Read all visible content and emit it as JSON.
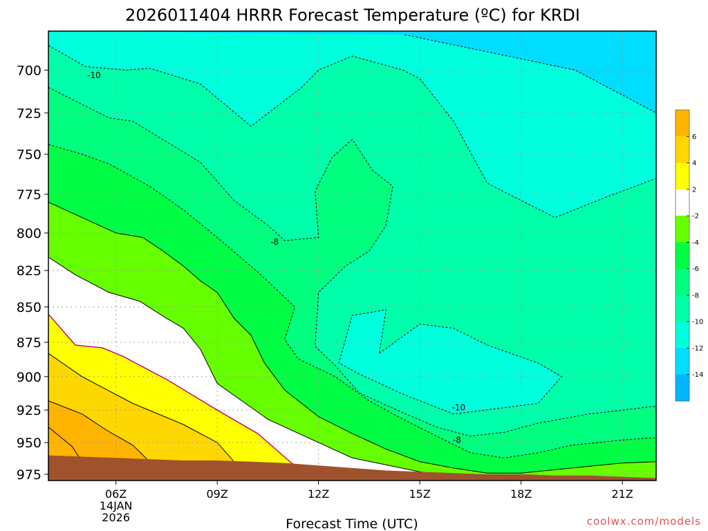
{
  "chart_data": {
    "type": "contour",
    "title": "2026011404 HRRR Forecast Temperature (ºC) for KRDI",
    "xlabel": "Forecast Time (UTC)",
    "ylabel": "",
    "x_ticks": [
      {
        "value": 6,
        "label": "06Z",
        "sub1": "14JAN",
        "sub2": "2026"
      },
      {
        "value": 9,
        "label": "09Z"
      },
      {
        "value": 12,
        "label": "12Z"
      },
      {
        "value": 15,
        "label": "15Z"
      },
      {
        "value": 18,
        "label": "18Z"
      },
      {
        "value": 21,
        "label": "21Z"
      }
    ],
    "xlim": [
      4,
      22
    ],
    "y_ticks": [
      700,
      725,
      750,
      775,
      800,
      825,
      850,
      875,
      900,
      925,
      950,
      975
    ],
    "ylim": [
      980,
      678
    ],
    "y_scale": "log-pressure",
    "grid": true,
    "colorbar": {
      "levels": [
        6,
        4,
        2,
        -2,
        -4,
        -6,
        -8,
        -10,
        -12,
        -14
      ],
      "colors": [
        "#ffb400",
        "#ffd700",
        "#ffff00",
        "#ffffff",
        "#66ff00",
        "#00ff44",
        "#00ff7f",
        "#00ffaa",
        "#00ffdd",
        "#00ddff",
        "#00b4ff"
      ]
    },
    "contour_labels": [
      {
        "text": "-10",
        "x": 5.35,
        "p": 703
      },
      {
        "text": "-8",
        "x": 10.7,
        "p": 806
      },
      {
        "text": "-10",
        "x": 16.15,
        "p": 923
      },
      {
        "text": "-8",
        "x": 16.1,
        "p": 948
      }
    ],
    "band_colors": [
      "#00ddff",
      "#00ffdd",
      "#00ffaa",
      "#00ff7f",
      "#00ff44",
      "#66ff00",
      "#ffffff",
      "#ffff00",
      "#ffd700",
      "#ffb400"
    ],
    "isotherms": [
      {
        "level": -12,
        "style": "dashed",
        "points": [
          [
            14.55,
            680
          ],
          [
            19.6,
            700
          ],
          [
            22,
            725
          ]
        ]
      },
      {
        "level": -10,
        "style": "dashed",
        "points": [
          [
            4,
            686
          ],
          [
            5.1,
            698
          ],
          [
            6.3,
            700
          ],
          [
            7,
            699
          ],
          [
            8.5,
            708
          ],
          [
            10,
            733
          ],
          [
            11.5,
            710
          ],
          [
            12,
            700
          ],
          [
            13,
            692
          ],
          [
            14.5,
            700
          ],
          [
            15,
            705
          ],
          [
            16,
            730
          ],
          [
            17,
            768
          ],
          [
            19,
            790
          ],
          [
            20.5,
            777
          ],
          [
            22,
            765
          ]
        ]
      },
      {
        "level": -10,
        "style": "dashed",
        "points": [
          [
            13.8,
            883
          ],
          [
            15,
            862
          ],
          [
            16,
            865
          ],
          [
            17,
            877
          ],
          [
            18.5,
            890
          ],
          [
            19.2,
            900
          ],
          [
            18.5,
            920
          ],
          [
            16,
            928
          ],
          [
            14.5,
            913
          ],
          [
            13.2,
            898
          ],
          [
            12.6,
            890
          ],
          [
            13,
            856
          ],
          [
            14,
            852
          ],
          [
            13.8,
            883
          ]
        ]
      },
      {
        "level": -8,
        "style": "dashed",
        "points": [
          [
            4,
            710
          ],
          [
            5,
            720
          ],
          [
            5.8,
            728
          ],
          [
            6.5,
            730
          ],
          [
            8.5,
            755
          ],
          [
            9.5,
            779
          ],
          [
            10.5,
            795
          ],
          [
            11,
            805
          ],
          [
            12,
            803
          ],
          [
            11.9,
            773
          ],
          [
            12.4,
            752
          ],
          [
            13,
            741
          ],
          [
            13.6,
            760
          ],
          [
            14.2,
            770
          ],
          [
            14,
            795
          ],
          [
            13.5,
            812
          ],
          [
            12.8,
            822
          ],
          [
            12,
            840
          ],
          [
            11.9,
            878
          ],
          [
            12.5,
            892
          ],
          [
            13.2,
            912
          ],
          [
            14.5,
            927
          ],
          [
            15.5,
            938
          ],
          [
            16.5,
            945
          ],
          [
            17.5,
            942
          ],
          [
            18.5,
            935
          ],
          [
            20,
            928
          ],
          [
            21,
            925
          ],
          [
            22,
            922
          ]
        ]
      },
      {
        "level": -6,
        "style": "dashed",
        "points": [
          [
            4,
            744
          ],
          [
            5,
            750
          ],
          [
            5.8,
            756
          ],
          [
            7,
            770
          ],
          [
            8,
            785
          ],
          [
            9,
            803
          ],
          [
            10.2,
            826
          ],
          [
            11.3,
            850
          ],
          [
            11,
            873
          ],
          [
            11.4,
            887
          ],
          [
            12.5,
            900
          ],
          [
            13.5,
            918
          ],
          [
            14.5,
            932
          ],
          [
            15.5,
            945
          ],
          [
            16.5,
            958
          ],
          [
            17.5,
            962
          ],
          [
            18.5,
            958
          ],
          [
            19.5,
            952
          ],
          [
            21,
            948
          ],
          [
            22,
            946
          ]
        ]
      },
      {
        "level": -4,
        "style": "solid",
        "points": [
          [
            4,
            780
          ],
          [
            5,
            790
          ],
          [
            6,
            800
          ],
          [
            6.8,
            803
          ],
          [
            7.4,
            812
          ],
          [
            8,
            822
          ],
          [
            8.5,
            832
          ],
          [
            9,
            840
          ],
          [
            9.5,
            858
          ],
          [
            10,
            870
          ],
          [
            10.4,
            890
          ],
          [
            11,
            910
          ],
          [
            12,
            930
          ],
          [
            13,
            943
          ],
          [
            14,
            955
          ],
          [
            15,
            965
          ],
          [
            16,
            970
          ],
          [
            17,
            974
          ],
          [
            18,
            974
          ],
          [
            19.5,
            970
          ],
          [
            21,
            966
          ],
          [
            22,
            965
          ]
        ]
      },
      {
        "level": -2,
        "style": "solid",
        "points": [
          [
            4,
            816
          ],
          [
            4.8,
            828
          ],
          [
            5.8,
            840
          ],
          [
            6.7,
            846
          ],
          [
            7.5,
            858
          ],
          [
            8,
            865
          ],
          [
            8.5,
            880
          ],
          [
            9,
            905
          ],
          [
            10.5,
            932
          ],
          [
            12,
            950
          ],
          [
            13,
            962
          ],
          [
            15,
            973
          ],
          [
            15.5,
            975
          ]
        ]
      },
      {
        "level": 0,
        "style": "solid",
        "color": "#c0006a",
        "points": [
          [
            4,
            855
          ],
          [
            4.8,
            877
          ],
          [
            5.6,
            879
          ],
          [
            6.2,
            885
          ],
          [
            7.5,
            902
          ],
          [
            9,
            925
          ],
          [
            10.2,
            943
          ],
          [
            11.2,
            966
          ],
          [
            11.5,
            972
          ]
        ]
      },
      {
        "level": 2,
        "style": "solid",
        "points": [
          [
            4,
            883
          ],
          [
            5,
            900
          ],
          [
            6.5,
            920
          ],
          [
            8,
            936
          ],
          [
            9,
            950
          ],
          [
            9.5,
            965
          ]
        ]
      },
      {
        "level": 4,
        "style": "solid",
        "points": [
          [
            4,
            918
          ],
          [
            5,
            928
          ],
          [
            5.7,
            940
          ],
          [
            6.5,
            952
          ],
          [
            7,
            965
          ]
        ]
      },
      {
        "level": 6,
        "style": "solid",
        "points": [
          [
            4,
            938
          ],
          [
            4.7,
            953
          ],
          [
            5,
            965
          ]
        ]
      }
    ],
    "surface": [
      [
        4,
        960
      ],
      [
        5,
        961
      ],
      [
        6,
        962
      ],
      [
        7,
        963
      ],
      [
        8,
        964
      ],
      [
        9,
        964
      ],
      [
        10,
        965
      ],
      [
        11,
        966
      ],
      [
        12,
        968
      ],
      [
        13,
        970
      ],
      [
        14,
        972
      ],
      [
        15,
        973
      ],
      [
        16,
        974
      ],
      [
        17,
        975
      ],
      [
        18,
        975
      ],
      [
        19,
        976
      ],
      [
        20,
        976
      ],
      [
        21,
        977
      ],
      [
        22,
        978
      ]
    ]
  },
  "credit": "coolwx.com/models",
  "colors": {
    "ground": "#a0522d",
    "grid": "#999999"
  }
}
